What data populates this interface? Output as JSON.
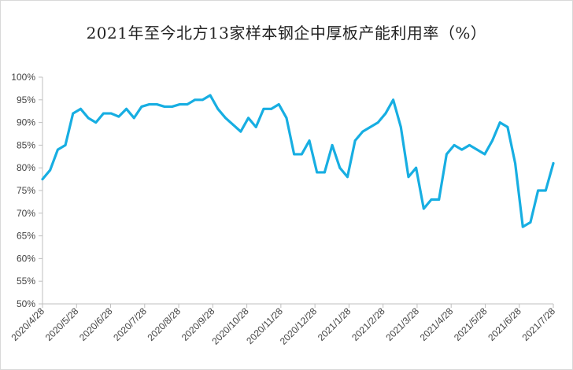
{
  "chart_data": {
    "type": "line",
    "title": "2021年至今北方13家样本钢企中厚板产能利用率（%）",
    "xlabel": "",
    "ylabel": "",
    "ylim": [
      50,
      100
    ],
    "y_ticks": [
      "50%",
      "55%",
      "60%",
      "65%",
      "70%",
      "75%",
      "80%",
      "85%",
      "90%",
      "95%",
      "100%"
    ],
    "x_tick_labels": [
      "2020/4/28",
      "2020/5/28",
      "2020/6/28",
      "2020/7/28",
      "2020/8/28",
      "2020/9/28",
      "2020/10/28",
      "2020/11/28",
      "2020/12/28",
      "2021/1/28",
      "2021/2/28",
      "2021/3/28",
      "2021/4/28",
      "2021/5/28",
      "2021/6/28",
      "2021/7/28"
    ],
    "grid": false,
    "legend": "none",
    "line_color": "#17aee2",
    "series": [
      {
        "values": [
          77.5,
          79.5,
          84,
          85,
          92,
          93,
          91,
          90,
          92,
          92,
          91.3,
          93,
          91,
          93.5,
          94,
          94,
          93.5,
          93.5,
          94,
          94,
          95,
          95,
          96,
          93,
          91,
          89.5,
          88,
          91,
          89,
          93,
          93,
          94,
          91,
          83,
          83,
          86,
          79,
          79,
          85,
          80,
          78,
          86,
          88,
          89,
          90,
          92,
          95,
          89,
          78,
          80,
          71,
          73,
          73,
          83,
          85,
          84,
          85,
          84,
          83,
          86,
          90,
          89,
          81,
          67,
          68,
          75,
          75,
          81
        ]
      }
    ]
  }
}
